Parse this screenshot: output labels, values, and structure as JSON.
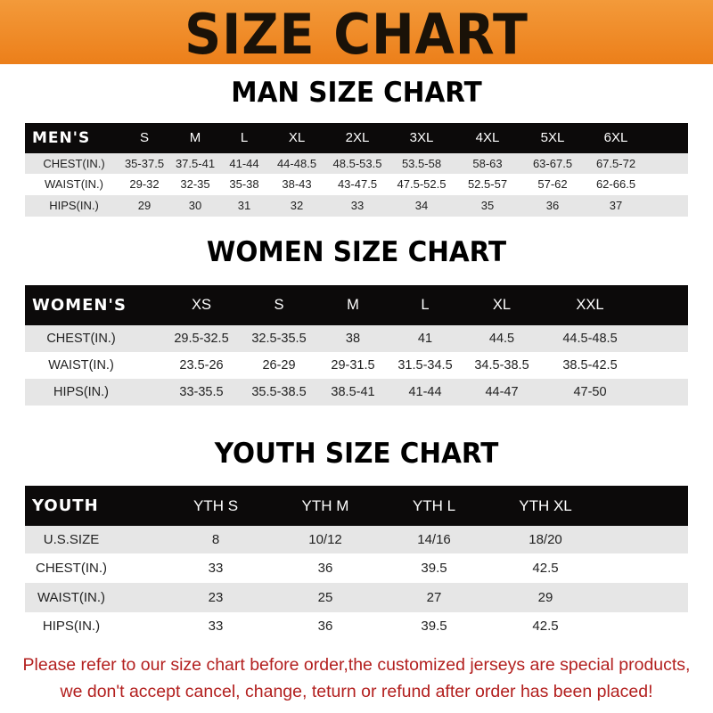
{
  "banner": {
    "title": "SIZE CHART",
    "color": "#ee861f"
  },
  "men": {
    "title": "MAN SIZE CHART",
    "header": [
      "MEN'S",
      "S",
      "M",
      "L",
      "XL",
      "2XL",
      "3XL",
      "4XL",
      "5XL",
      "6XL"
    ],
    "rows": [
      [
        "CHEST(IN.)",
        "35-37.5",
        "37.5-41",
        "41-44",
        "44-48.5",
        "48.5-53.5",
        "53.5-58",
        "58-63",
        "63-67.5",
        "67.5-72"
      ],
      [
        "WAIST(IN.)",
        "29-32",
        "32-35",
        "35-38",
        "38-43",
        "43-47.5",
        "47.5-52.5",
        "52.5-57",
        "57-62",
        "62-66.5"
      ],
      [
        "HIPS(IN.)",
        "29",
        "30",
        "31",
        "32",
        "33",
        "34",
        "35",
        "36",
        "37"
      ]
    ]
  },
  "women": {
    "title": "WOMEN SIZE CHART",
    "header": [
      "WOMEN'S",
      "XS",
      "S",
      "M",
      "L",
      "XL",
      "XXL"
    ],
    "rows": [
      [
        "CHEST(IN.)",
        "29.5-32.5",
        "32.5-35.5",
        "38",
        "41",
        "44.5",
        "44.5-48.5"
      ],
      [
        "WAIST(IN.)",
        "23.5-26",
        "26-29",
        "29-31.5",
        "31.5-34.5",
        "34.5-38.5",
        "38.5-42.5"
      ],
      [
        "HIPS(IN.)",
        "33-35.5",
        "35.5-38.5",
        "38.5-41",
        "41-44",
        "44-47",
        "47-50"
      ]
    ]
  },
  "youth": {
    "title": "YOUTH SIZE CHART",
    "header": [
      "YOUTH",
      "YTH S",
      "YTH M",
      "YTH L",
      "YTH XL"
    ],
    "rows": [
      [
        "U.S.SIZE",
        "8",
        "10/12",
        "14/16",
        "18/20"
      ],
      [
        "CHEST(IN.)",
        "33",
        "36",
        "39.5",
        "42.5"
      ],
      [
        "WAIST(IN.)",
        "23",
        "25",
        "27",
        "29"
      ],
      [
        "HIPS(IN.)",
        "33",
        "36",
        "39.5",
        "42.5"
      ]
    ]
  },
  "footer": {
    "line1": "Please refer to our size chart before order,the customized jerseys are special products,",
    "line2": "we don't accept cancel, change, teturn or refund after order has been placed!",
    "color": "#b3201f"
  }
}
